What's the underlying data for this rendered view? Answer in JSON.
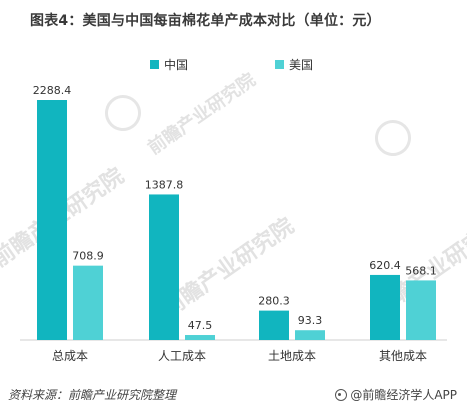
{
  "title": "图表4：美国与中国每亩棉花单产成本对比（单位：元）",
  "legend": [
    {
      "label": "中国",
      "color": "#11b5bf"
    },
    {
      "label": "美国",
      "color": "#4fd1d5"
    }
  ],
  "watermarks": [
    "前瞻产业研究院",
    "前瞻产业研究院",
    "前瞻产业研究院",
    "前瞻产业研究院"
  ],
  "chart_data": {
    "type": "bar",
    "title": "图表4：美国与中国每亩棉花单产成本对比（单位：元）",
    "categories": [
      "总成本",
      "人工成本",
      "土地成本",
      "其他成本"
    ],
    "series": [
      {
        "name": "中国",
        "values": [
          2288.4,
          1387.8,
          280.3,
          620.4
        ],
        "color": "#11b5bf"
      },
      {
        "name": "美国",
        "values": [
          708.9,
          47.5,
          93.3,
          568.1
        ],
        "color": "#4fd1d5"
      }
    ],
    "xlabel": "",
    "ylabel": "",
    "ylim": [
      0,
      2288.4
    ],
    "grid": false,
    "legend_position": "top-center"
  },
  "footer": {
    "source": "资料来源：前瞻产业研究院整理",
    "brand": "@前瞻经济学人APP"
  }
}
